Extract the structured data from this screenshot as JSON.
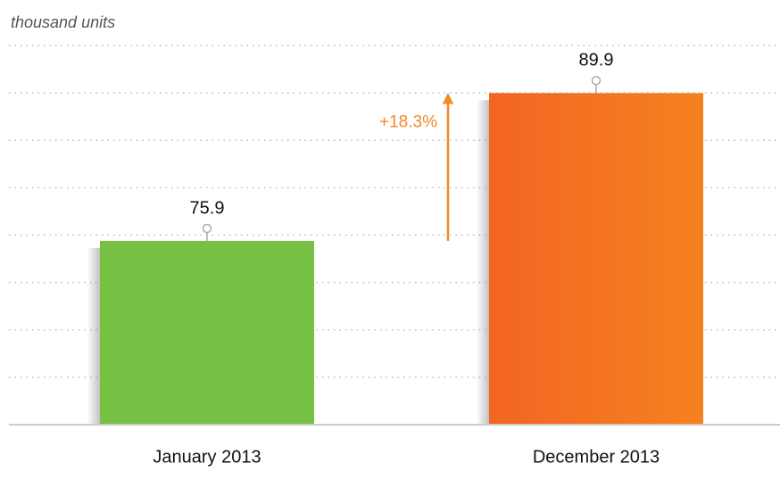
{
  "chart_data": {
    "type": "bar",
    "y_label": "thousand units",
    "categories": [
      "January 2013",
      "December 2013"
    ],
    "values": [
      75.9,
      89.9
    ],
    "colors": [
      "#76c043",
      "#f37021"
    ],
    "ylim": [
      58.5,
      94.4
    ],
    "annotation": "+18.3%",
    "annotation_color": "#f08a24"
  }
}
